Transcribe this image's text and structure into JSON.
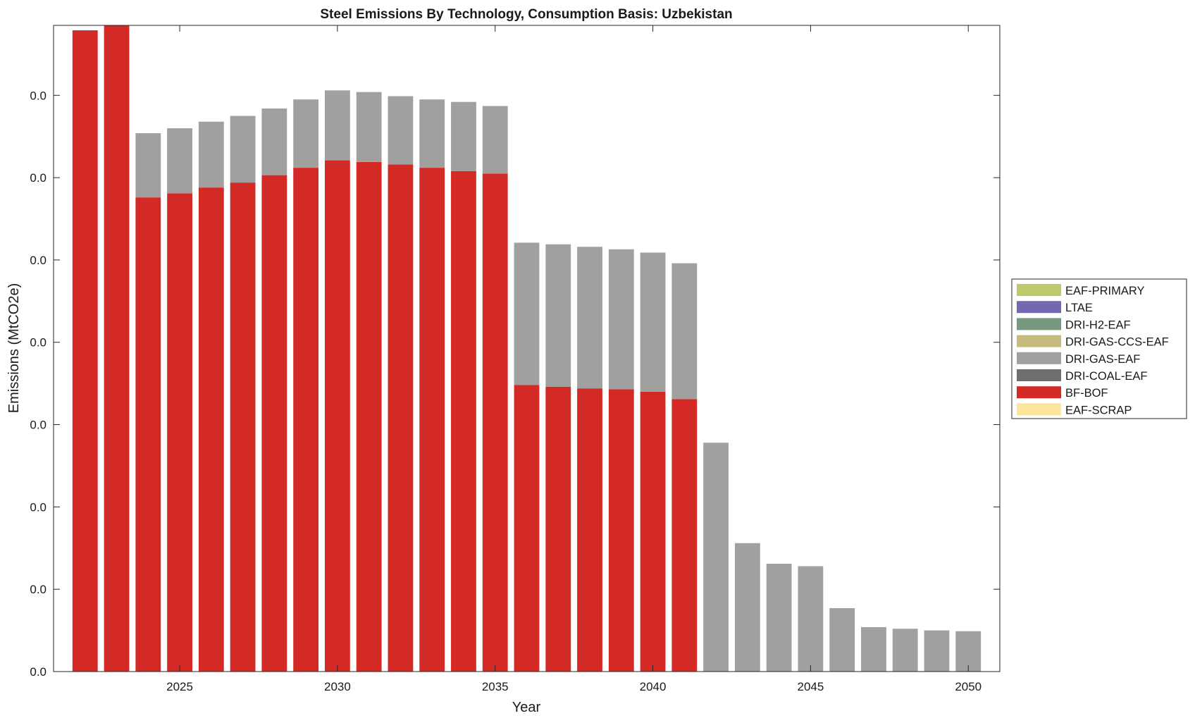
{
  "chart_data": {
    "type": "bar",
    "stacked": true,
    "title": "Steel Emissions By Technology, Consumption Basis: Uzbekistan",
    "xlabel": "Year",
    "ylabel": "Emissions (MtCO2e)",
    "xlim": [
      2021,
      2051
    ],
    "ylim": [
      0,
      7.85
    ],
    "xticks": [
      2025,
      2030,
      2035,
      2040,
      2045,
      2050
    ],
    "xtick_labels": [
      "2025",
      "2030",
      "2035",
      "2040",
      "2045",
      "2050"
    ],
    "yticks": [
      0,
      1,
      2,
      3,
      4,
      5,
      6,
      7
    ],
    "ytick_labels": [
      "0.0",
      "0.0",
      "0.0",
      "0.0",
      "0.0",
      "0.0",
      "0.0",
      "0.0"
    ],
    "grid": false,
    "legend_position": "outside-right",
    "categories": [
      2022,
      2023,
      2024,
      2025,
      2026,
      2027,
      2028,
      2029,
      2030,
      2031,
      2032,
      2033,
      2034,
      2035,
      2036,
      2037,
      2038,
      2039,
      2040,
      2041,
      2042,
      2043,
      2044,
      2045,
      2046,
      2047,
      2048,
      2049,
      2050
    ],
    "series": [
      {
        "name": "BF-BOF",
        "color": "#d42a25",
        "values": [
          7.79,
          7.9,
          5.76,
          5.81,
          5.88,
          5.94,
          6.03,
          6.12,
          6.21,
          6.19,
          6.16,
          6.12,
          6.08,
          6.05,
          3.48,
          3.46,
          3.44,
          3.43,
          3.4,
          3.31,
          0,
          0,
          0,
          0,
          0,
          0,
          0,
          0,
          0
        ]
      },
      {
        "name": "DRI-GAS-EAF",
        "color": "#a0a09f",
        "values": [
          0,
          0,
          0.78,
          0.79,
          0.8,
          0.81,
          0.81,
          0.83,
          0.85,
          0.85,
          0.83,
          0.83,
          0.84,
          0.82,
          1.73,
          1.73,
          1.72,
          1.7,
          1.69,
          1.65,
          2.78,
          1.56,
          1.31,
          1.28,
          0.77,
          0.54,
          0.52,
          0.5,
          0.49
        ]
      }
    ],
    "legend": [
      {
        "name": "EAF-PRIMARY",
        "color": "#bfc86a"
      },
      {
        "name": "LTAE",
        "color": "#7468b5"
      },
      {
        "name": "DRI-H2-EAF",
        "color": "#77987e"
      },
      {
        "name": "DRI-GAS-CCS-EAF",
        "color": "#c4bb7c"
      },
      {
        "name": "DRI-GAS-EAF",
        "color": "#a0a09f"
      },
      {
        "name": "DRI-COAL-EAF",
        "color": "#6e6e6e"
      },
      {
        "name": "BF-BOF",
        "color": "#d42a25"
      },
      {
        "name": "EAF-SCRAP",
        "color": "#fde59a"
      }
    ]
  }
}
